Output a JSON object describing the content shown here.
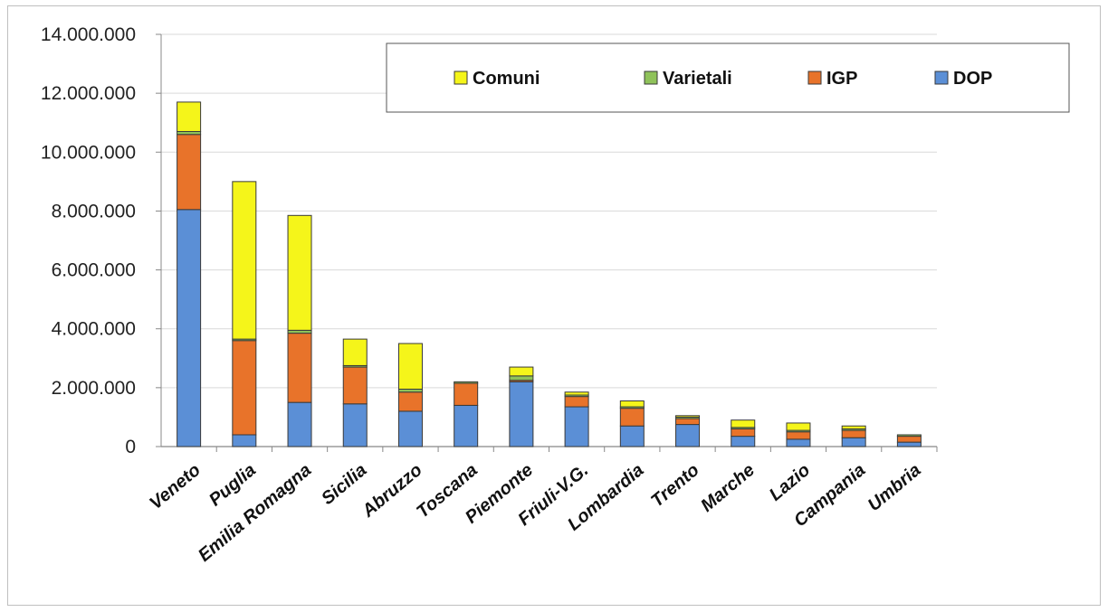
{
  "chart_data": {
    "type": "bar",
    "stacked": true,
    "title": "",
    "xlabel": "",
    "ylabel": "",
    "ylim": [
      0,
      14000000
    ],
    "yticks": [
      "0",
      "2.000.000",
      "4.000.000",
      "6.000.000",
      "8.000.000",
      "10.000.000",
      "12.000.000",
      "14.000.000"
    ],
    "grid": true,
    "legend_position": "top-right",
    "categories": [
      "Veneto",
      "Puglia",
      "Emilia Romagna",
      "Sicilia",
      "Abruzzo",
      "Toscana",
      "Piemonte",
      "Friuli-V.G.",
      "Lombardia",
      "Trento",
      "Marche",
      "Lazio",
      "Campania",
      "Umbria"
    ],
    "series": [
      {
        "name": "DOP",
        "color": "#5b8fd6",
        "values": [
          8050000,
          400000,
          1500000,
          1450000,
          1200000,
          1400000,
          2200000,
          1350000,
          700000,
          750000,
          350000,
          250000,
          300000,
          150000
        ]
      },
      {
        "name": "IGP",
        "color": "#e8732a",
        "values": [
          2550000,
          3200000,
          2350000,
          1250000,
          650000,
          750000,
          50000,
          350000,
          600000,
          200000,
          250000,
          250000,
          250000,
          200000
        ]
      },
      {
        "name": "Varietali",
        "color": "#8fc25a",
        "values": [
          100000,
          50000,
          100000,
          50000,
          100000,
          50000,
          150000,
          50000,
          50000,
          50000,
          50000,
          50000,
          50000,
          50000
        ]
      },
      {
        "name": "Comuni",
        "color": "#f5f51a",
        "values": [
          1000000,
          5350000,
          3900000,
          900000,
          1550000,
          0,
          300000,
          100000,
          200000,
          50000,
          250000,
          250000,
          100000,
          0
        ]
      }
    ],
    "legend_order": [
      "Comuni",
      "Varietali",
      "IGP",
      "DOP"
    ]
  }
}
